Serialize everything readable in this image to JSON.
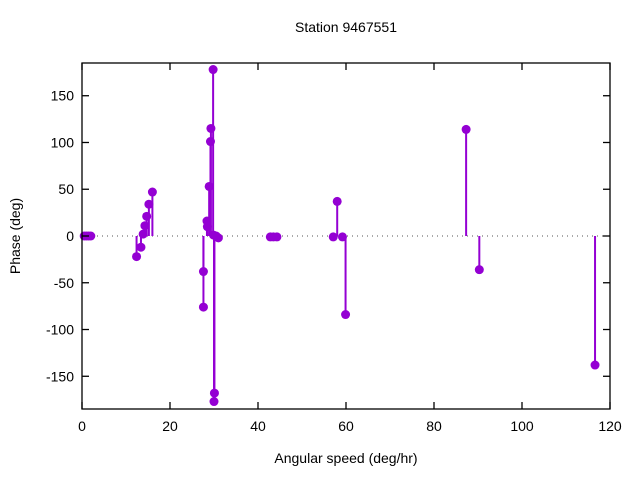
{
  "chart_data": {
    "type": "scatter",
    "style": "impulses+points",
    "title": "Station 9467551",
    "xlabel": "Angular speed (deg/hr)",
    "ylabel": "Phase (deg)",
    "xlim": [
      0,
      120
    ],
    "ylim": [
      -185,
      185
    ],
    "x_ticks": [
      0,
      20,
      40,
      60,
      80,
      100,
      120
    ],
    "y_ticks": [
      -150,
      -100,
      -50,
      0,
      50,
      100,
      150
    ],
    "grid": false,
    "legend": "none",
    "zero_line": true,
    "colors": {
      "series": "#9400d3",
      "border": "#000000",
      "zero_line": "#555555",
      "text": "#000000",
      "background": "#ffffff"
    },
    "points": [
      {
        "x": 0.5,
        "y": 0
      },
      {
        "x": 1.0,
        "y": 0
      },
      {
        "x": 1.5,
        "y": 0
      },
      {
        "x": 2.0,
        "y": 0
      },
      {
        "x": 12.4,
        "y": -22
      },
      {
        "x": 13.4,
        "y": -12
      },
      {
        "x": 13.9,
        "y": 2
      },
      {
        "x": 14.3,
        "y": 11
      },
      {
        "x": 14.7,
        "y": 21
      },
      {
        "x": 15.2,
        "y": 34
      },
      {
        "x": 16.0,
        "y": 47
      },
      {
        "x": 27.6,
        "y": -76
      },
      {
        "x": 27.6,
        "y": -38
      },
      {
        "x": 28.4,
        "y": 16
      },
      {
        "x": 28.5,
        "y": 10
      },
      {
        "x": 28.9,
        "y": 53
      },
      {
        "x": 29.2,
        "y": 101
      },
      {
        "x": 29.3,
        "y": 115
      },
      {
        "x": 29.8,
        "y": 178
      },
      {
        "x": 29.9,
        "y": 1
      },
      {
        "x": 30.0,
        "y": -177
      },
      {
        "x": 30.1,
        "y": -168
      },
      {
        "x": 30.5,
        "y": 0
      },
      {
        "x": 31.0,
        "y": -2
      },
      {
        "x": 42.8,
        "y": -1
      },
      {
        "x": 43.5,
        "y": -1
      },
      {
        "x": 44.3,
        "y": -1
      },
      {
        "x": 57.1,
        "y": -1
      },
      {
        "x": 58.0,
        "y": 37
      },
      {
        "x": 59.2,
        "y": -1
      },
      {
        "x": 59.9,
        "y": -84
      },
      {
        "x": 87.3,
        "y": 114
      },
      {
        "x": 90.3,
        "y": -36
      },
      {
        "x": 116.6,
        "y": -138
      }
    ]
  }
}
